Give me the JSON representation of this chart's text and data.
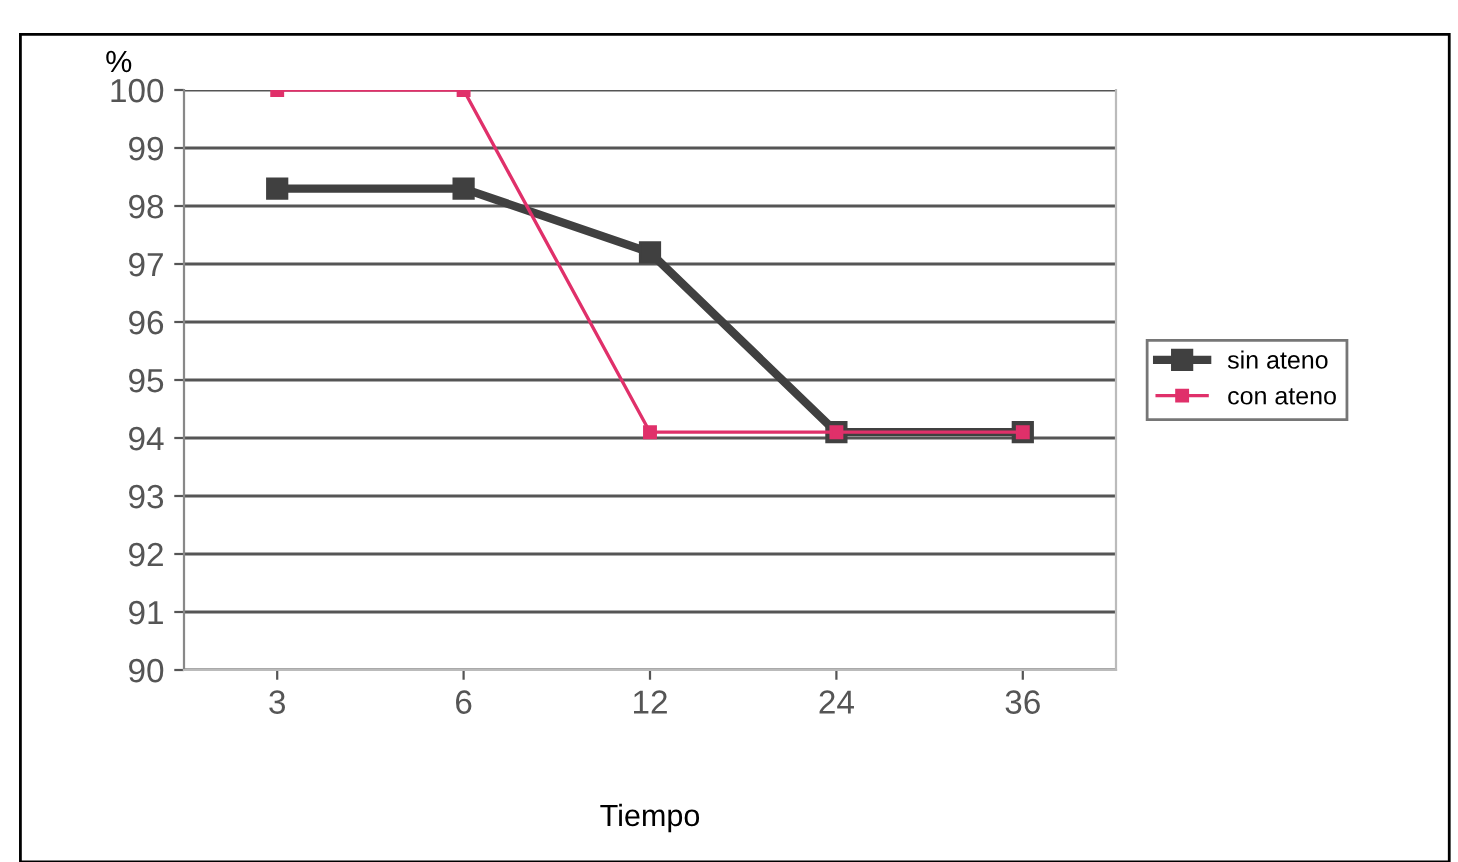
{
  "chart_data": {
    "type": "line",
    "ylabel": "%",
    "xlabel": "Tiempo",
    "categories": [
      "3",
      "6",
      "12",
      "24",
      "36"
    ],
    "series": [
      {
        "name": "sin ateno",
        "color": "#404040",
        "values": [
          98.3,
          98.3,
          97.2,
          94.1,
          94.1
        ]
      },
      {
        "name": "con ateno",
        "color": "#e0306a",
        "values": [
          100,
          100,
          94.1,
          94.1,
          94.1
        ]
      }
    ],
    "ylim": [
      90,
      100
    ],
    "yticks": [
      90,
      91,
      92,
      93,
      94,
      95,
      96,
      97,
      98,
      99,
      100
    ],
    "grid": "y",
    "legend": "right",
    "marker": "square",
    "line_style": "solid"
  }
}
